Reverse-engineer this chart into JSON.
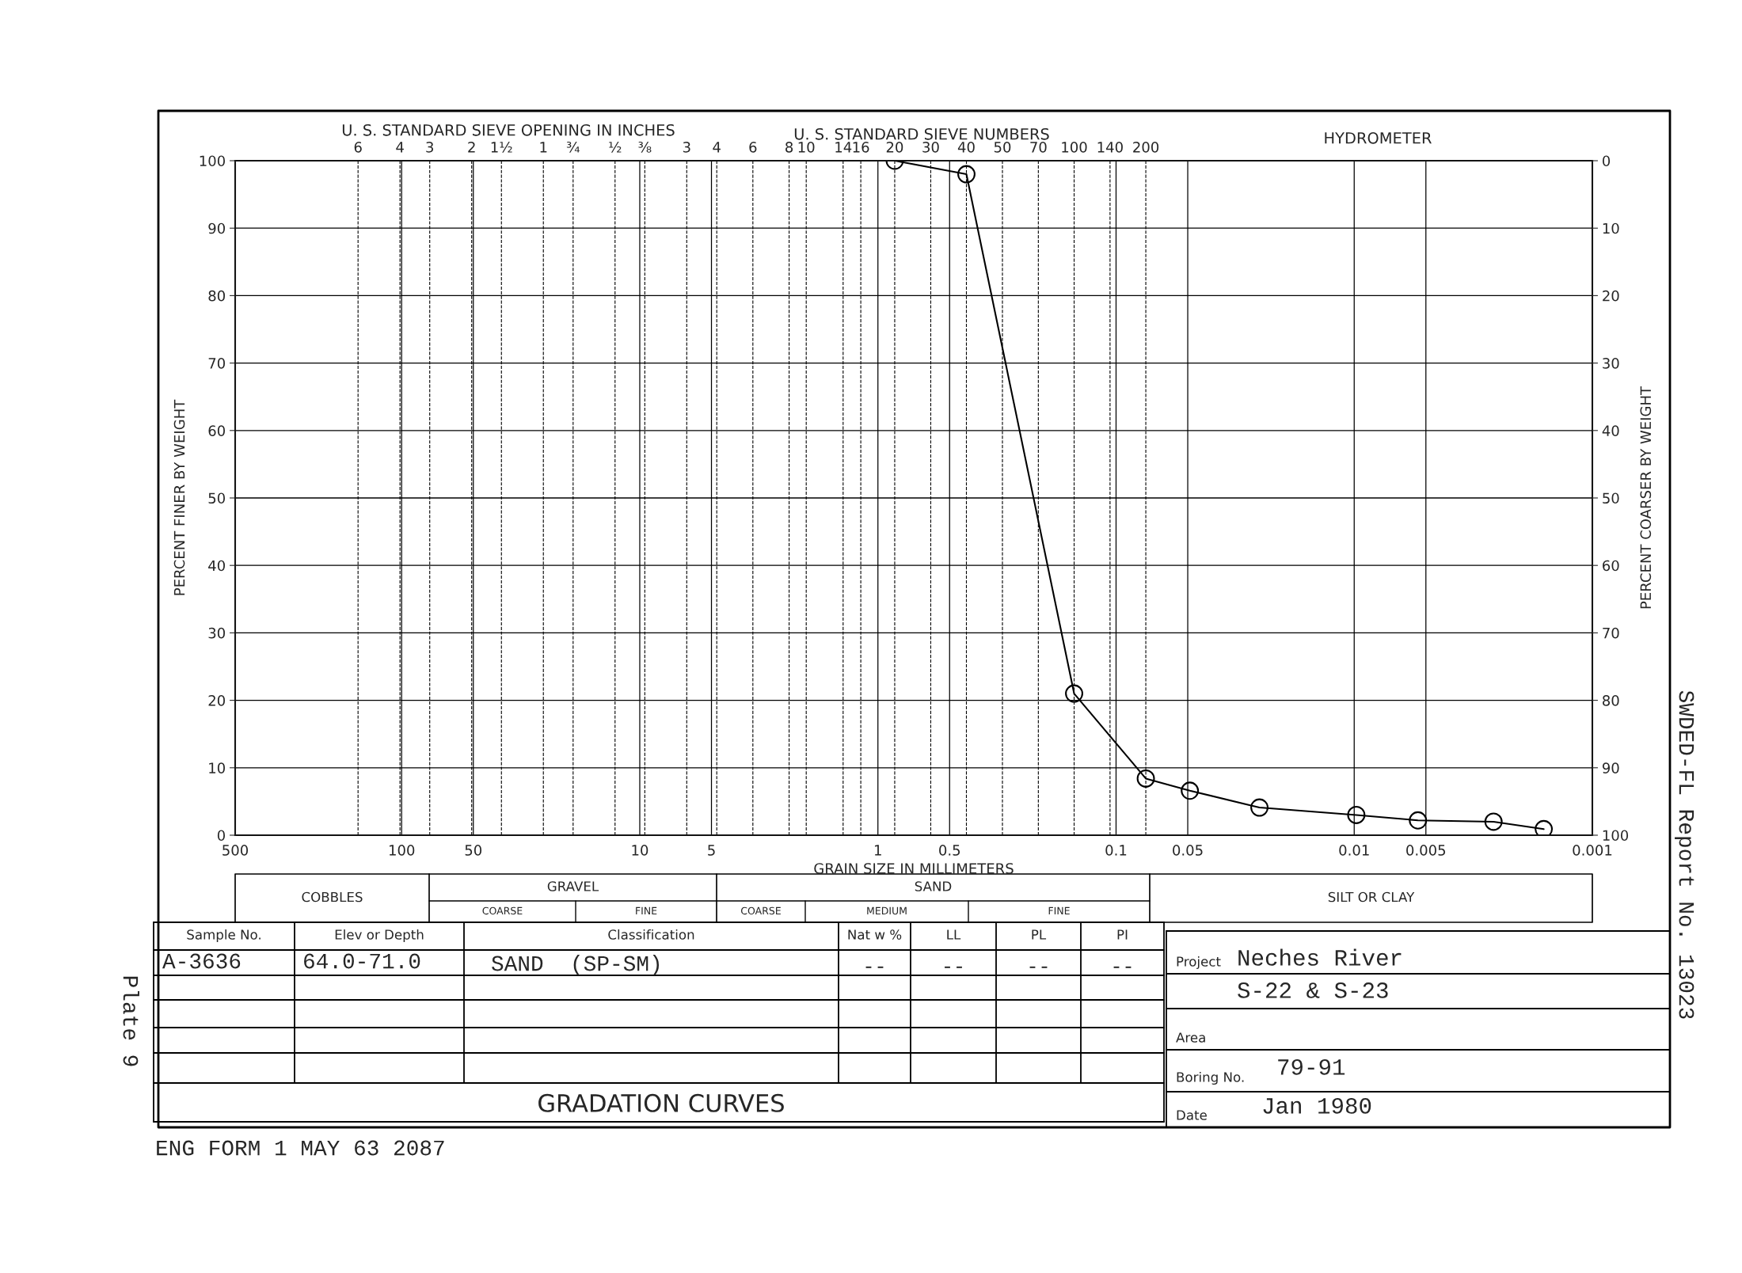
{
  "chart_data": {
    "type": "line",
    "title": "GRADATION CURVES",
    "xlabel": "GRAIN SIZE IN MILLIMETERS",
    "ylabel": "PERCENT FINER BY WEIGHT",
    "y2label": "PERCENT COARSER BY WEIGHT",
    "log": "x",
    "grid": true,
    "legend": false,
    "marker": "circle",
    "line_style": "solid",
    "xlim": [
      500,
      0.001
    ],
    "xticks": [
      500,
      100,
      50,
      10,
      5,
      1,
      0.5,
      0.1,
      0.05,
      0.01,
      0.005,
      0.001
    ],
    "ylim": [
      0,
      100
    ],
    "yticks": [
      0,
      10,
      20,
      30,
      40,
      50,
      60,
      70,
      80,
      90,
      100
    ],
    "y2lim": [
      100,
      0
    ],
    "y2ticks": [
      0,
      10,
      20,
      30,
      40,
      50,
      60,
      70,
      80,
      90,
      100
    ],
    "series": [
      {
        "color": "#000000",
        "x": [
          0.85,
          0.425,
          0.15,
          0.075,
          0.049,
          0.025,
          0.0098,
          0.0054,
          0.0026,
          0.0016
        ],
        "values": [
          100,
          98,
          21,
          8.4,
          6.6,
          4.1,
          3.0,
          2.2,
          2.0,
          0.9
        ]
      }
    ],
    "ref_lines": [
      {
        "axis": "x",
        "value": 152.4,
        "line_style": "dashed"
      },
      {
        "axis": "x",
        "value": 101.6,
        "line_style": "dashed"
      },
      {
        "axis": "x",
        "value": 76.2,
        "line_style": "dashed"
      },
      {
        "axis": "x",
        "value": 50.8,
        "line_style": "dashed"
      },
      {
        "axis": "x",
        "value": 38.1,
        "line_style": "dashed"
      },
      {
        "axis": "x",
        "value": 25.4,
        "line_style": "dashed"
      },
      {
        "axis": "x",
        "value": 19.05,
        "line_style": "dashed"
      },
      {
        "axis": "x",
        "value": 12.7,
        "line_style": "dashed"
      },
      {
        "axis": "x",
        "value": 9.525,
        "line_style": "dashed"
      },
      {
        "axis": "x",
        "value": 6.35,
        "line_style": "dashed"
      },
      {
        "axis": "x",
        "value": 4.75,
        "line_style": "dashed"
      },
      {
        "axis": "x",
        "value": 3.35,
        "line_style": "dashed"
      },
      {
        "axis": "x",
        "value": 2.36,
        "line_style": "dashed"
      },
      {
        "axis": "x",
        "value": 2.0,
        "line_style": "dashed"
      },
      {
        "axis": "x",
        "value": 1.4,
        "line_style": "dashed"
      },
      {
        "axis": "x",
        "value": 1.18,
        "line_style": "dashed"
      },
      {
        "axis": "x",
        "value": 0.85,
        "line_style": "dashed"
      },
      {
        "axis": "x",
        "value": 0.6,
        "line_style": "dashed"
      },
      {
        "axis": "x",
        "value": 0.425,
        "line_style": "dashed"
      },
      {
        "axis": "x",
        "value": 0.3,
        "line_style": "dashed"
      },
      {
        "axis": "x",
        "value": 0.212,
        "line_style": "dashed"
      },
      {
        "axis": "x",
        "value": 0.15,
        "line_style": "dashed"
      },
      {
        "axis": "x",
        "value": 0.106,
        "line_style": "dashed"
      },
      {
        "axis": "x",
        "value": 0.075,
        "line_style": "dashed"
      }
    ],
    "annotations": [
      "U. S. STANDARD SIEVE OPENING IN INCHES",
      "U. S. STANDARD SIEVE NUMBERS",
      "HYDROMETER",
      "Sample No.",
      "Elev or Depth",
      "Classification",
      "Nat w %",
      "LL",
      "PL",
      "PI",
      "A-3636",
      "64.0-71.0",
      "SAND  (SP-SM)",
      "--",
      "--",
      "--",
      "--",
      "Project",
      "Neches River",
      "S-22 & S-23",
      "Area",
      "Boring No.",
      "79-91",
      "Date",
      "Jan 1980",
      "Plate 9",
      "SWDED-FL Report No. 13023",
      "ENG FORM 1 MAY 63 2087",
      "6",
      "4",
      "3",
      "2",
      "1½",
      "1",
      "¾",
      "½",
      "⅜",
      "3",
      "4",
      "6",
      "8",
      "10",
      "14",
      "16",
      "20",
      "30",
      "40",
      "50",
      "70",
      "100",
      "140",
      "200",
      "COBBLES",
      "GRAVEL",
      "COARSE",
      "FINE",
      "SAND",
      "COARSE",
      "MEDIUM",
      "FINE",
      "SILT OR CLAY"
    ]
  }
}
